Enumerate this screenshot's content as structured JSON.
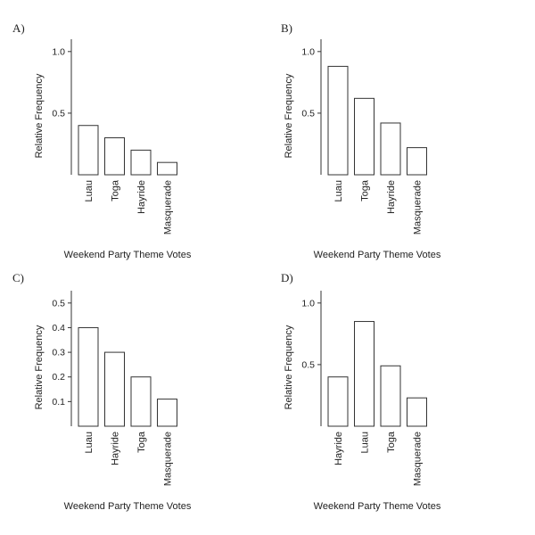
{
  "chart_data": [
    {
      "panel": "A)",
      "type": "bar",
      "categories": [
        "Luau",
        "Toga",
        "Hayride",
        "Masquerade"
      ],
      "values": [
        0.4,
        0.3,
        0.2,
        0.1
      ],
      "ylabel": "Relative Frequency",
      "xlabel": "Weekend Party Theme Votes",
      "ylim": [
        0,
        1.1
      ],
      "yticks": [
        0.5,
        1.0
      ],
      "ytick_labels": [
        "0.5",
        "1.0"
      ]
    },
    {
      "panel": "B)",
      "type": "bar",
      "categories": [
        "Luau",
        "Toga",
        "Hayride",
        "Masquerade"
      ],
      "values": [
        0.88,
        0.62,
        0.42,
        0.22
      ],
      "ylabel": "Relative Frequency",
      "xlabel": "Weekend Party Theme Votes",
      "ylim": [
        0,
        1.1
      ],
      "yticks": [
        0.5,
        1.0
      ],
      "ytick_labels": [
        "0.5",
        "1.0"
      ]
    },
    {
      "panel": "C)",
      "type": "bar",
      "categories": [
        "Luau",
        "Hayride",
        "Toga",
        "Masquerade"
      ],
      "values": [
        0.4,
        0.3,
        0.2,
        0.11
      ],
      "ylabel": "Relative Frequency",
      "xlabel": "Weekend Party Theme Votes",
      "ylim": [
        0,
        0.55
      ],
      "yticks": [
        0.1,
        0.2,
        0.3,
        0.4,
        0.5
      ],
      "ytick_labels": [
        "0.1",
        "0.2",
        "0.3",
        "0.4",
        "0.5"
      ]
    },
    {
      "panel": "D)",
      "type": "bar",
      "categories": [
        "Hayride",
        "Luau",
        "Toga",
        "Masquerade"
      ],
      "values": [
        0.4,
        0.85,
        0.49,
        0.23
      ],
      "ylabel": "Relative Frequency",
      "xlabel": "Weekend Party Theme Votes",
      "ylim": [
        0,
        1.1
      ],
      "yticks": [
        0.5,
        1.0
      ],
      "ytick_labels": [
        "0.5",
        "1.0"
      ]
    }
  ]
}
